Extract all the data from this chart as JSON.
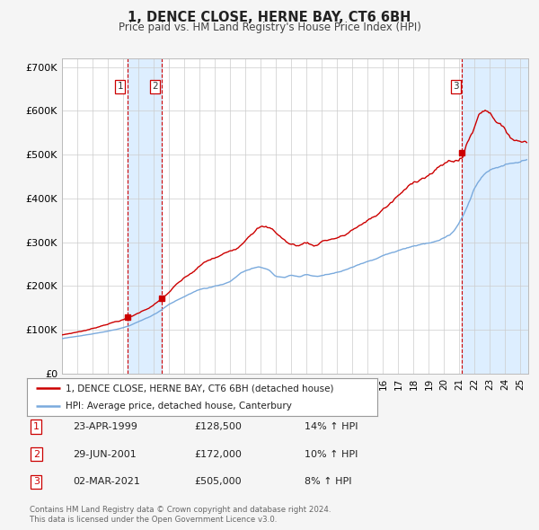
{
  "title": "1, DENCE CLOSE, HERNE BAY, CT6 6BH",
  "subtitle": "Price paid vs. HM Land Registry's House Price Index (HPI)",
  "legend_label_red": "1, DENCE CLOSE, HERNE BAY, CT6 6BH (detached house)",
  "legend_label_blue": "HPI: Average price, detached house, Canterbury",
  "footer_line1": "Contains HM Land Registry data © Crown copyright and database right 2024.",
  "footer_line2": "This data is licensed under the Open Government Licence v3.0.",
  "transactions": [
    {
      "num": 1,
      "date": "23-APR-1999",
      "price": "£128,500",
      "hpi": "14% ↑ HPI",
      "year": 1999.3,
      "value": 128500
    },
    {
      "num": 2,
      "date": "29-JUN-2001",
      "price": "£172,000",
      "hpi": "10% ↑ HPI",
      "year": 2001.5,
      "value": 172000
    },
    {
      "num": 3,
      "date": "02-MAR-2021",
      "price": "£505,000",
      "hpi": "8% ↑ HPI",
      "year": 2021.17,
      "value": 505000
    }
  ],
  "yticks": [
    0,
    100000,
    200000,
    300000,
    400000,
    500000,
    600000,
    700000
  ],
  "ytick_labels": [
    "£0",
    "£100K",
    "£200K",
    "£300K",
    "£400K",
    "£500K",
    "£600K",
    "£700K"
  ],
  "xlim_start": 1995.0,
  "xlim_end": 2025.5,
  "ylim_min": 0,
  "ylim_max": 720000,
  "color_red": "#cc0000",
  "color_blue": "#7aaadd",
  "color_shaded": "#ddeeff",
  "color_dashed": "#cc0000",
  "bg_color": "#f5f5f5",
  "plot_bg": "#ffffff"
}
